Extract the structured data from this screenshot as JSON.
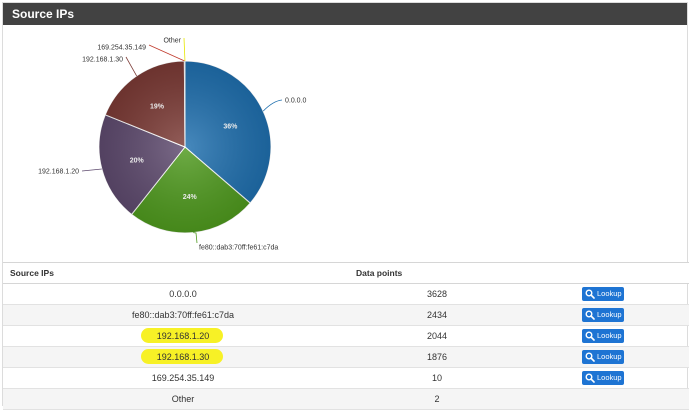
{
  "panel": {
    "title": "Source IPs"
  },
  "chart_data": {
    "type": "pie",
    "title": "",
    "slices": [
      {
        "label": "0.0.0.0",
        "value": 3628,
        "percent_label": "36%",
        "color": "#1f6fae"
      },
      {
        "label": "fe80::dab3:70ff:fe61:c7da",
        "value": 2434,
        "percent_label": "24%",
        "color": "#4f9a1e"
      },
      {
        "label": "192.168.1.20",
        "value": 2044,
        "percent_label": "20%",
        "color": "#5e4a6e"
      },
      {
        "label": "192.168.1.30",
        "value": 1876,
        "percent_label": "19%",
        "color": "#7b3a35"
      },
      {
        "label": "169.254.35.149",
        "value": 10,
        "percent_label": "",
        "color": "#c0392b"
      },
      {
        "label": "Other",
        "value": 2,
        "percent_label": "",
        "color": "#e6e600"
      }
    ]
  },
  "table": {
    "headers": {
      "ip": "Source IPs",
      "points": "Data points"
    },
    "lookup_label": "Lookup",
    "rows": [
      {
        "ip": "0.0.0.0",
        "points": "3628",
        "highlight": false,
        "lookup": true
      },
      {
        "ip": "fe80::dab3:70ff:fe61:c7da",
        "points": "2434",
        "highlight": false,
        "lookup": true
      },
      {
        "ip": "192.168.1.20",
        "points": "2044",
        "highlight": true,
        "lookup": true
      },
      {
        "ip": "192.168.1.30",
        "points": "1876",
        "highlight": true,
        "lookup": true
      },
      {
        "ip": "169.254.35.149",
        "points": "10",
        "highlight": false,
        "lookup": true
      },
      {
        "ip": "Other",
        "points": "2",
        "highlight": false,
        "lookup": false
      }
    ]
  }
}
